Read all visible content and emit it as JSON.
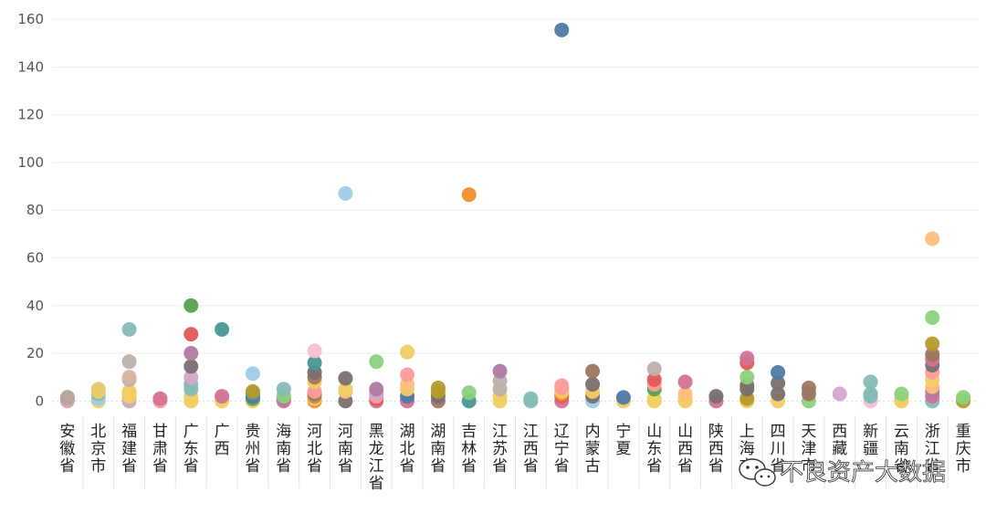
{
  "chart_data": {
    "type": "scatter",
    "title": "",
    "xlabel": "",
    "ylabel": "",
    "ylim": [
      -6,
      165
    ],
    "yticks": [
      0,
      20,
      40,
      60,
      80,
      100,
      120,
      140,
      160
    ],
    "grid": true,
    "categories": [
      "安徽省",
      "北京市",
      "福建省",
      "甘肃省",
      "广东省",
      "广西",
      "贵州省",
      "海南省",
      "河北省",
      "河南省",
      "黑龙江省",
      "湖北省",
      "湖南省",
      "吉林省",
      "江苏省",
      "江西省",
      "辽宁省",
      "内蒙古",
      "宁夏",
      "山东省",
      "山西省",
      "陕西省",
      "上海市",
      "四川省",
      "天津市",
      "西藏",
      "新疆",
      "云南省",
      "浙江省",
      "重庆市"
    ],
    "points": [
      [
        0,
        0,
        "#d8a6b4"
      ],
      [
        0,
        1,
        "#c9a0ad"
      ],
      [
        0,
        1.6,
        "#b4a79a"
      ],
      [
        1,
        0,
        "#f1ce63"
      ],
      [
        1,
        1,
        "#a0cbe8"
      ],
      [
        1,
        3,
        "#86bcb6"
      ],
      [
        1,
        4,
        "#f1ce63"
      ],
      [
        1,
        5,
        "#e8c86e"
      ],
      [
        2,
        0,
        "#bab0ac"
      ],
      [
        2,
        1,
        "#d4a6c8"
      ],
      [
        2,
        2,
        "#f1ce63"
      ],
      [
        2,
        3,
        "#f1ce63"
      ],
      [
        2,
        4,
        "#f1ce63"
      ],
      [
        2,
        9,
        "#bab0ac"
      ],
      [
        2,
        10,
        "#d7b5a6"
      ],
      [
        2,
        16.5,
        "#bab0ac"
      ],
      [
        2,
        30,
        "#86bcb6"
      ],
      [
        3,
        0,
        "#ff9d9a"
      ],
      [
        3,
        1,
        "#d37295"
      ],
      [
        4,
        0,
        "#f1ce63"
      ],
      [
        4,
        2,
        "#f1ce63"
      ],
      [
        4,
        5,
        "#86bcb6"
      ],
      [
        4,
        7,
        "#86bcb6"
      ],
      [
        4,
        10,
        "#d4a6c8"
      ],
      [
        4,
        14.5,
        "#79706e"
      ],
      [
        4,
        20,
        "#b07aa1"
      ],
      [
        4,
        28,
        "#e15759"
      ],
      [
        4,
        40,
        "#59a14f"
      ],
      [
        5,
        0,
        "#f1ce63"
      ],
      [
        5,
        2,
        "#d37295"
      ],
      [
        5,
        30,
        "#499894"
      ],
      [
        6,
        0,
        "#f1ce63"
      ],
      [
        6,
        1,
        "#59a14f"
      ],
      [
        6,
        2,
        "#4e79a7"
      ],
      [
        6,
        3,
        "#499894"
      ],
      [
        6,
        4,
        "#b6992d"
      ],
      [
        6,
        11.5,
        "#a0cbe8"
      ],
      [
        7,
        0,
        "#d37295"
      ],
      [
        7,
        1,
        "#b07aa1"
      ],
      [
        7,
        2,
        "#8cd17d"
      ],
      [
        7,
        5,
        "#86bcb6"
      ],
      [
        8,
        0,
        "#f28e2b"
      ],
      [
        8,
        1,
        "#ffbe7d"
      ],
      [
        8,
        2,
        "#b6992d"
      ],
      [
        8,
        3,
        "#9d7660"
      ],
      [
        8,
        4,
        "#ff9d9a"
      ],
      [
        8,
        8,
        "#f1ce63"
      ],
      [
        8,
        10,
        "#9d7660"
      ],
      [
        8,
        12,
        "#79706e"
      ],
      [
        8,
        16,
        "#499894"
      ],
      [
        8,
        21,
        "#fabfd2"
      ],
      [
        9,
        0,
        "#79706e"
      ],
      [
        9,
        4,
        "#ffbe7d"
      ],
      [
        9,
        5,
        "#f1ce63"
      ],
      [
        9,
        9.5,
        "#79706e"
      ],
      [
        9,
        87,
        "#a0cbe8"
      ],
      [
        10,
        0,
        "#d37295"
      ],
      [
        10,
        1,
        "#e15759"
      ],
      [
        10,
        2,
        "#ff9d9a"
      ],
      [
        10,
        3,
        "#d4a6c8"
      ],
      [
        10,
        5,
        "#b07aa1"
      ],
      [
        10,
        16.5,
        "#8cd17d"
      ],
      [
        11,
        0,
        "#d37295"
      ],
      [
        11,
        2,
        "#4e79a7"
      ],
      [
        11,
        5,
        "#f1ce63"
      ],
      [
        11,
        7,
        "#ffbe7d"
      ],
      [
        11,
        11,
        "#ff9d9a"
      ],
      [
        11,
        20.5,
        "#f1ce63"
      ],
      [
        12,
        0,
        "#9d7660"
      ],
      [
        12,
        2,
        "#79706e"
      ],
      [
        12,
        4,
        "#b6992d"
      ],
      [
        12,
        5.5,
        "#b6992d"
      ],
      [
        13,
        0,
        "#499894"
      ],
      [
        13,
        3.5,
        "#8cd17d"
      ],
      [
        13,
        86.5,
        "#f28e2b"
      ],
      [
        14,
        0,
        "#f1ce63"
      ],
      [
        14,
        2,
        "#f1ce63"
      ],
      [
        14,
        5,
        "#bab0ac"
      ],
      [
        14,
        8.5,
        "#bab0ac"
      ],
      [
        14,
        12.5,
        "#b07aa1"
      ],
      [
        15,
        0,
        "#86bcb6"
      ],
      [
        15,
        1,
        "#86bcb6"
      ],
      [
        16,
        0,
        "#d37295"
      ],
      [
        16,
        2,
        "#e15759"
      ],
      [
        16,
        3,
        "#f28e2b"
      ],
      [
        16,
        4,
        "#f1ce63"
      ],
      [
        16,
        5.5,
        "#ff9d9a"
      ],
      [
        16,
        6.5,
        "#ff9d9a"
      ],
      [
        16,
        155.5,
        "#4e79a7"
      ],
      [
        17,
        0,
        "#a0cbe8"
      ],
      [
        17,
        2,
        "#79706e"
      ],
      [
        17,
        4,
        "#f1ce63"
      ],
      [
        17,
        7,
        "#79706e"
      ],
      [
        17,
        12.5,
        "#9d7660"
      ],
      [
        18,
        0,
        "#f1ce63"
      ],
      [
        18,
        1.5,
        "#4e79a7"
      ],
      [
        19,
        0,
        "#f1ce63"
      ],
      [
        19,
        1,
        "#f1ce63"
      ],
      [
        19,
        5,
        "#59a14f"
      ],
      [
        19,
        7,
        "#ff9d9a"
      ],
      [
        19,
        9,
        "#e15759"
      ],
      [
        19,
        13.5,
        "#bab0ac"
      ],
      [
        20,
        0,
        "#f1ce63"
      ],
      [
        20,
        1,
        "#f1ce63"
      ],
      [
        20,
        3,
        "#ffbe7d"
      ],
      [
        20,
        8,
        "#d37295"
      ],
      [
        21,
        0,
        "#d37295"
      ],
      [
        21,
        2,
        "#79706e"
      ],
      [
        22,
        0,
        "#f1ce63"
      ],
      [
        22,
        1,
        "#b6992d"
      ],
      [
        22,
        5,
        "#79706e"
      ],
      [
        22,
        6.5,
        "#79706e"
      ],
      [
        22,
        10,
        "#8cd17d"
      ],
      [
        22,
        16,
        "#e15759"
      ],
      [
        22,
        18,
        "#d37295"
      ],
      [
        23,
        0,
        "#f1ce63"
      ],
      [
        23,
        3,
        "#79706e"
      ],
      [
        23,
        7.5,
        "#79706e"
      ],
      [
        23,
        12,
        "#4e79a7"
      ],
      [
        24,
        0,
        "#8cd17d"
      ],
      [
        24,
        3,
        "#9d7660"
      ],
      [
        24,
        5.5,
        "#9d7660"
      ],
      [
        25,
        3,
        "#d4a6c8"
      ],
      [
        26,
        0,
        "#fabfd2"
      ],
      [
        26,
        2,
        "#86bcb6"
      ],
      [
        26,
        3,
        "#86bcb6"
      ],
      [
        26,
        8,
        "#86bcb6"
      ],
      [
        27,
        0,
        "#f1ce63"
      ],
      [
        27,
        1,
        "#f1ce63"
      ],
      [
        27,
        3,
        "#8cd17d"
      ],
      [
        28,
        0,
        "#86bcb6"
      ],
      [
        28,
        2,
        "#d37295"
      ],
      [
        28,
        4,
        "#b07aa1"
      ],
      [
        28,
        6,
        "#ffbe7d"
      ],
      [
        28,
        9,
        "#f1ce63"
      ],
      [
        28,
        12,
        "#ff9d9a"
      ],
      [
        28,
        15,
        "#79706e"
      ],
      [
        28,
        17.5,
        "#d37295"
      ],
      [
        28,
        19.5,
        "#9d7660"
      ],
      [
        28,
        24,
        "#b6992d"
      ],
      [
        28,
        35,
        "#8cd17d"
      ],
      [
        28,
        68,
        "#ffbe7d"
      ],
      [
        29,
        0,
        "#b6992d"
      ],
      [
        29,
        1.5,
        "#8cd17d"
      ]
    ]
  },
  "watermark": {
    "icon": "wechat-icon",
    "text": "不良资产大数据"
  }
}
